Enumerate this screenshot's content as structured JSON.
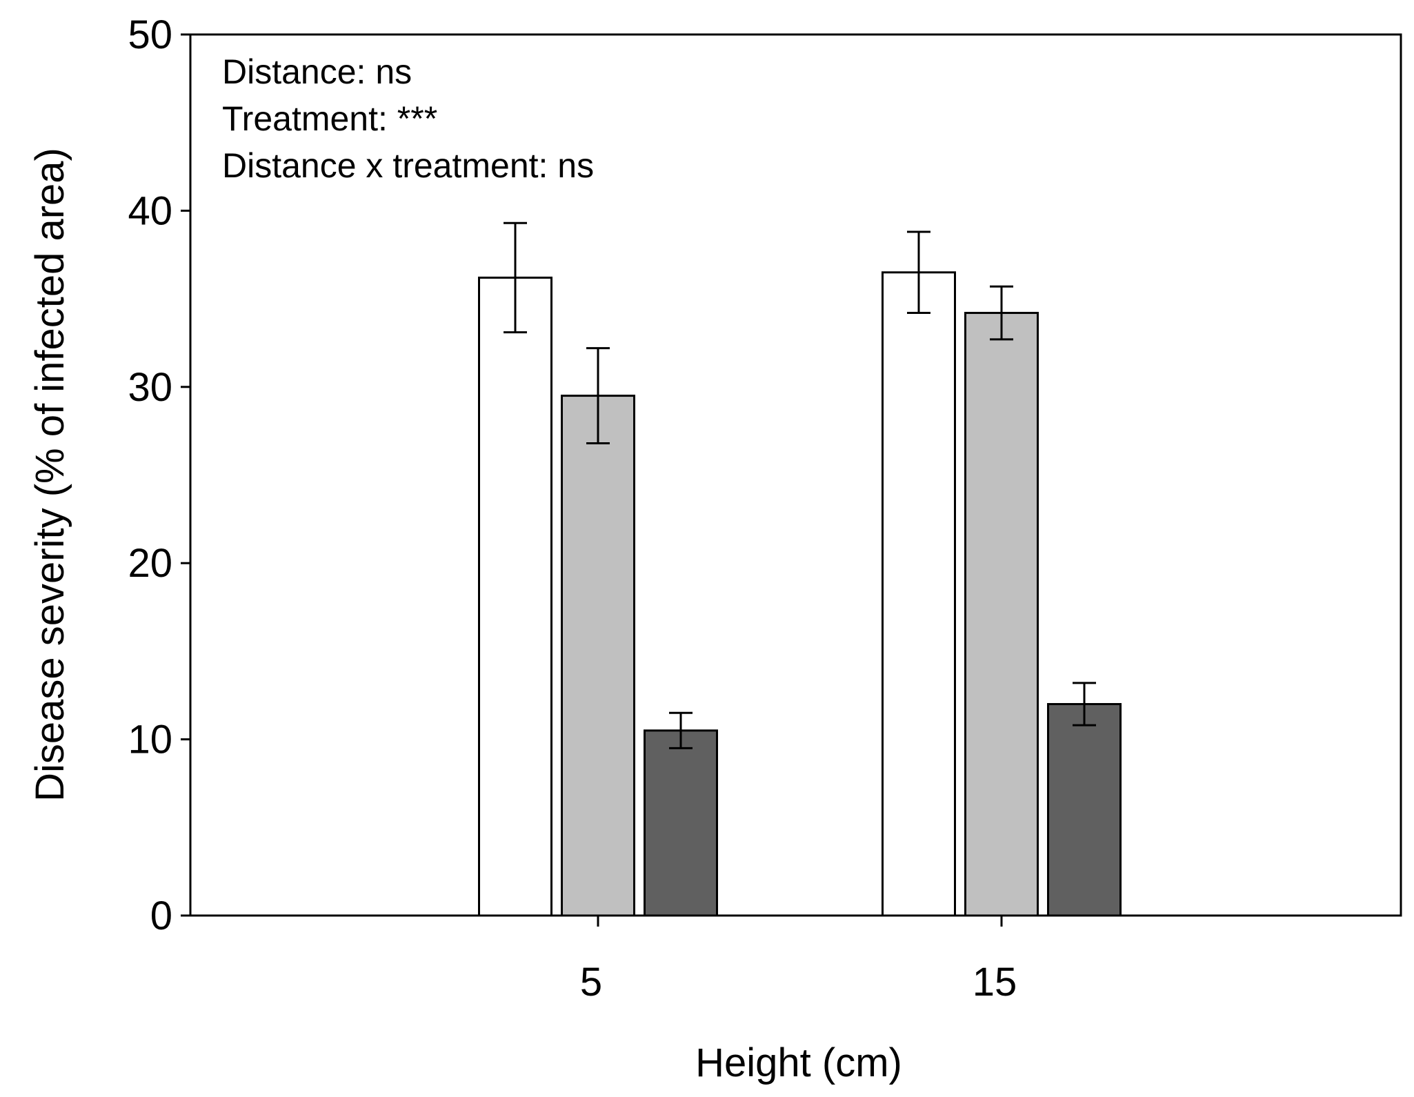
{
  "chart_data": {
    "type": "bar",
    "title": "",
    "xlabel": "Height (cm)",
    "ylabel": "Disease severity (% of infected area)",
    "categories": [
      "5",
      "15"
    ],
    "ylim": [
      0,
      50
    ],
    "yticks": [
      0,
      10,
      20,
      30,
      40,
      50
    ],
    "grid": false,
    "legend": "none",
    "series": [
      {
        "color": "#ffffff",
        "values": [
          36.2,
          36.5
        ],
        "errors": [
          3.1,
          2.3
        ]
      },
      {
        "color": "#c0c0c0",
        "values": [
          29.5,
          34.2
        ],
        "errors": [
          2.7,
          1.5
        ]
      },
      {
        "color": "#606060",
        "values": [
          10.5,
          12.0
        ],
        "errors": [
          1.0,
          1.2
        ]
      }
    ],
    "annotations": [
      "Distance: ns",
      "Treatment: ***",
      "Distance x treatment: ns"
    ]
  }
}
